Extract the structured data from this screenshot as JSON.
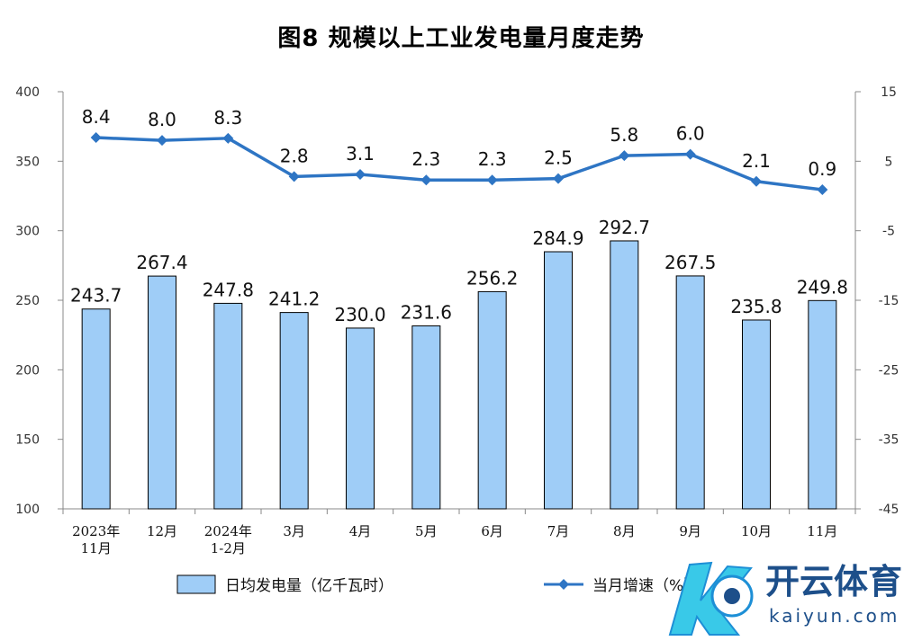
{
  "chart_data": {
    "type": "bar+line",
    "title": "图8  规模以上工业发电量月度走势",
    "categories": [
      [
        "2023年",
        "11月"
      ],
      [
        "12月"
      ],
      [
        "2024年",
        "1-2月"
      ],
      [
        "3月"
      ],
      [
        "4月"
      ],
      [
        "5月"
      ],
      [
        "6月"
      ],
      [
        "7月"
      ],
      [
        "8月"
      ],
      [
        "9月"
      ],
      [
        "10月"
      ],
      [
        "11月"
      ]
    ],
    "series": [
      {
        "name": "日均发电量（亿千瓦时）",
        "type": "bar",
        "axis": "left",
        "color": "#9fcdf7",
        "values": [
          243.7,
          267.4,
          247.8,
          241.2,
          230.0,
          231.6,
          256.2,
          284.9,
          292.7,
          267.5,
          235.8,
          249.8
        ],
        "labels": [
          "243.7",
          "267.4",
          "247.8",
          "241.2",
          "230.0",
          "231.6",
          "256.2",
          "284.9",
          "292.7",
          "267.5",
          "235.8",
          "249.8"
        ]
      },
      {
        "name": "当月增速（%）",
        "type": "line",
        "axis": "right",
        "color": "#2e75c4",
        "values": [
          8.4,
          8.0,
          8.3,
          2.8,
          3.1,
          2.3,
          2.3,
          2.5,
          5.8,
          6.0,
          2.1,
          0.9
        ],
        "labels": [
          "8.4",
          "8.0",
          "8.3",
          "2.8",
          "3.1",
          "2.3",
          "2.3",
          "2.5",
          "5.8",
          "6.0",
          "2.1",
          "0.9"
        ]
      }
    ],
    "y_left": {
      "range": [
        100,
        400
      ],
      "ticks": [
        "100",
        "150",
        "200",
        "250",
        "300",
        "350",
        "400"
      ]
    },
    "y_right": {
      "range": [
        -45,
        15
      ],
      "ticks": [
        "-45",
        "-35",
        "-25",
        "-15",
        "-5",
        "5",
        "15"
      ]
    },
    "grid": false,
    "legend": "bottom"
  },
  "watermark": {
    "text": "开云体育",
    "url": "kaiyun.com"
  }
}
